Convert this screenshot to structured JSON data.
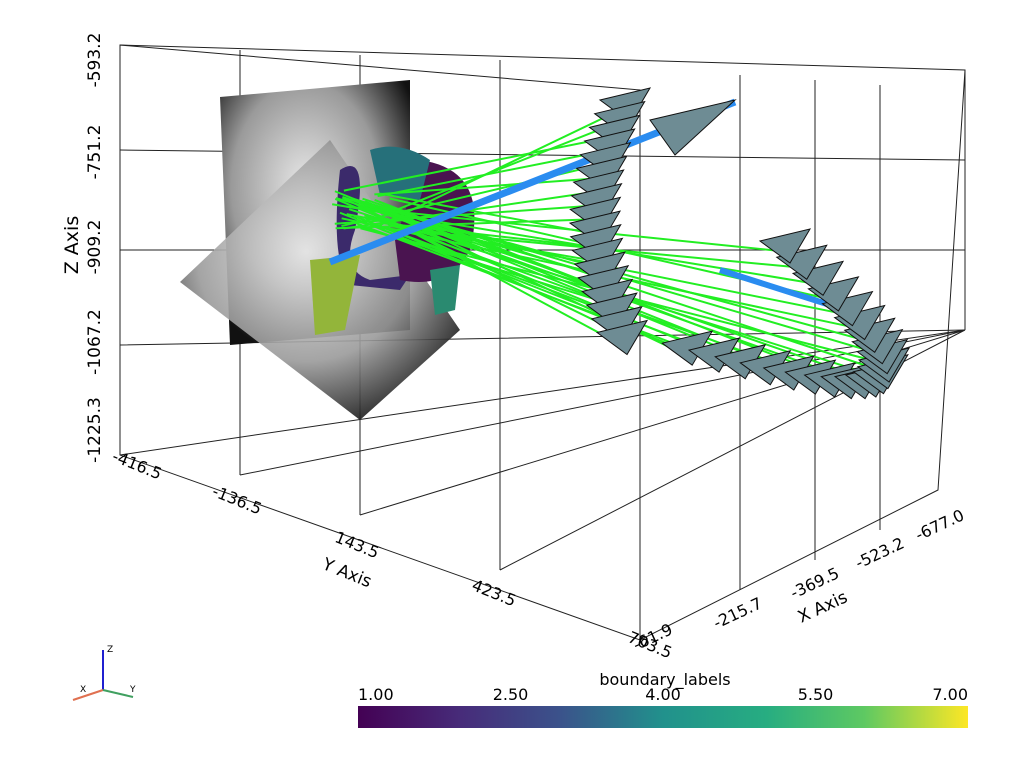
{
  "axes": {
    "z": {
      "title": "Z Axis",
      "ticks": [
        "-593.2",
        "-751.2",
        "-909.2",
        "-1067.2",
        "-1225.3"
      ]
    },
    "y": {
      "title": "Y Axis",
      "ticks": [
        "-416.5",
        "-136.5",
        "143.5",
        "423.5",
        "703.5"
      ]
    },
    "x": {
      "title": "X Axis",
      "ticks": [
        "-61.9",
        "-215.7",
        "-369.5",
        "-523.2",
        "-677.0"
      ]
    }
  },
  "colorbar": {
    "title": "boundary_labels",
    "ticks": [
      "1.00",
      "2.50",
      "4.00",
      "5.50",
      "7.00"
    ]
  },
  "orientation": {
    "labels": [
      "X",
      "Y",
      "Z"
    ]
  }
}
